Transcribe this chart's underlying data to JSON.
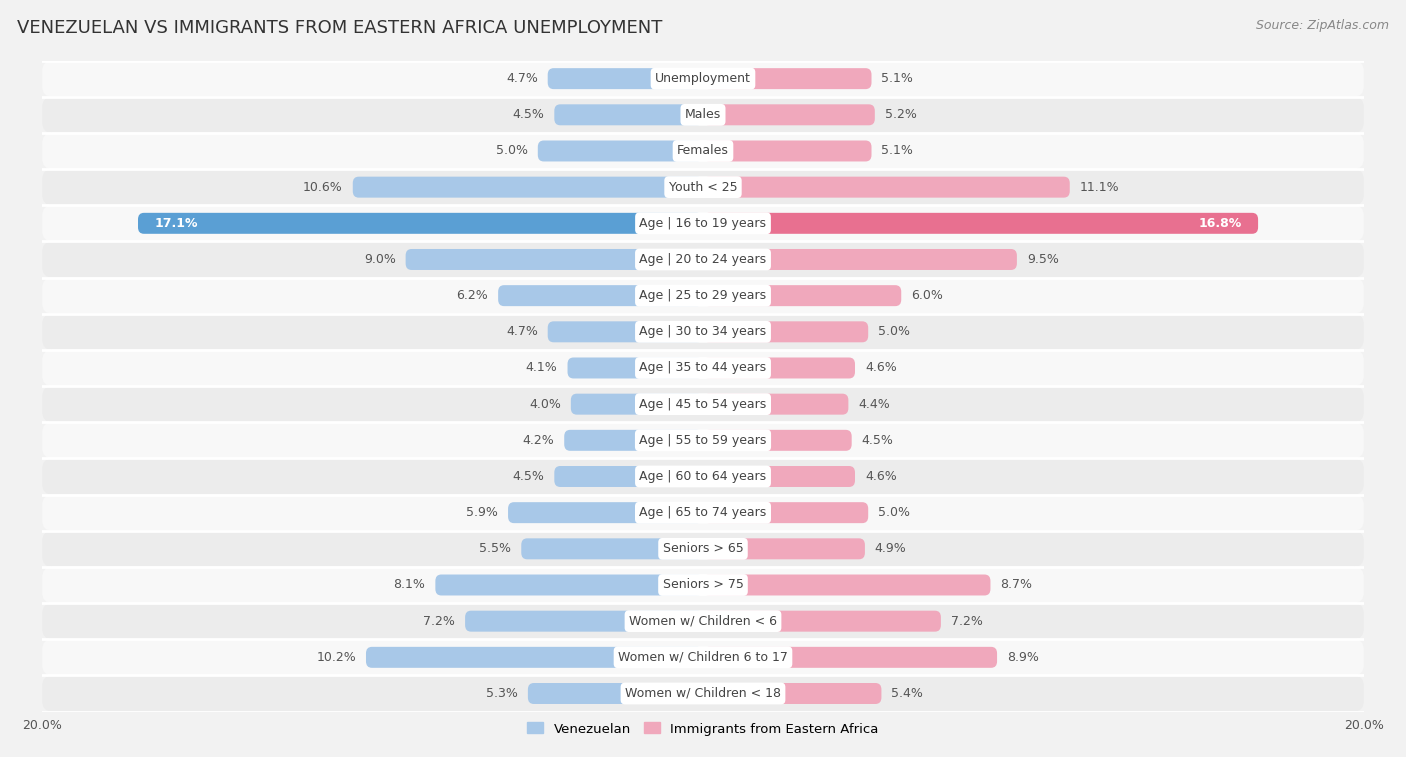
{
  "title": "VENEZUELAN VS IMMIGRANTS FROM EASTERN AFRICA UNEMPLOYMENT",
  "source": "Source: ZipAtlas.com",
  "categories": [
    "Unemployment",
    "Males",
    "Females",
    "Youth < 25",
    "Age | 16 to 19 years",
    "Age | 20 to 24 years",
    "Age | 25 to 29 years",
    "Age | 30 to 34 years",
    "Age | 35 to 44 years",
    "Age | 45 to 54 years",
    "Age | 55 to 59 years",
    "Age | 60 to 64 years",
    "Age | 65 to 74 years",
    "Seniors > 65",
    "Seniors > 75",
    "Women w/ Children < 6",
    "Women w/ Children 6 to 17",
    "Women w/ Children < 18"
  ],
  "venezuelan": [
    4.7,
    4.5,
    5.0,
    10.6,
    17.1,
    9.0,
    6.2,
    4.7,
    4.1,
    4.0,
    4.2,
    4.5,
    5.9,
    5.5,
    8.1,
    7.2,
    10.2,
    5.3
  ],
  "eastern_africa": [
    5.1,
    5.2,
    5.1,
    11.1,
    16.8,
    9.5,
    6.0,
    5.0,
    4.6,
    4.4,
    4.5,
    4.6,
    5.0,
    4.9,
    8.7,
    7.2,
    8.9,
    5.4
  ],
  "venezuelan_color": "#a8c8e8",
  "eastern_africa_color": "#f0a8bc",
  "venezuelan_highlight_color": "#5a9fd4",
  "eastern_africa_highlight_color": "#e87090",
  "bar_height": 0.58,
  "max_val": 20.0,
  "background_color": "#f2f2f2",
  "row_bg_colors": [
    "#f8f8f8",
    "#ececec"
  ],
  "separator_color": "#ffffff",
  "label_color_dark": "#555555",
  "category_bg_color": "#ffffff",
  "legend_label_venezuelan": "Venezuelan",
  "legend_label_eastern_africa": "Immigrants from Eastern Africa",
  "title_fontsize": 13,
  "source_fontsize": 9,
  "label_fontsize": 9,
  "category_fontsize": 9,
  "axis_label_fontsize": 9
}
